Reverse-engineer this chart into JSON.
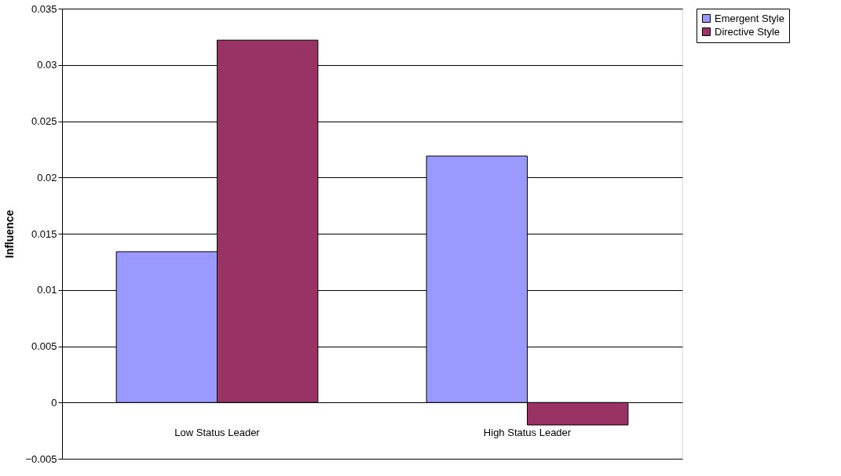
{
  "chart_data": {
    "type": "bar",
    "ylabel": "Influence",
    "categories": [
      "Low Status Leader",
      "High Status Leader"
    ],
    "series": [
      {
        "name": "Emergent Style",
        "color": "#9999ff",
        "values": [
          0.0134,
          0.0219
        ]
      },
      {
        "name": "Directive Style",
        "color": "#993366",
        "values": [
          0.0322,
          -0.002
        ]
      }
    ],
    "ylim": [
      -0.005,
      0.035
    ],
    "yticks": [
      -0.005,
      0,
      0.005,
      0.01,
      0.015,
      0.02,
      0.025,
      0.03,
      0.035
    ],
    "grid": "y",
    "legend": "right"
  }
}
